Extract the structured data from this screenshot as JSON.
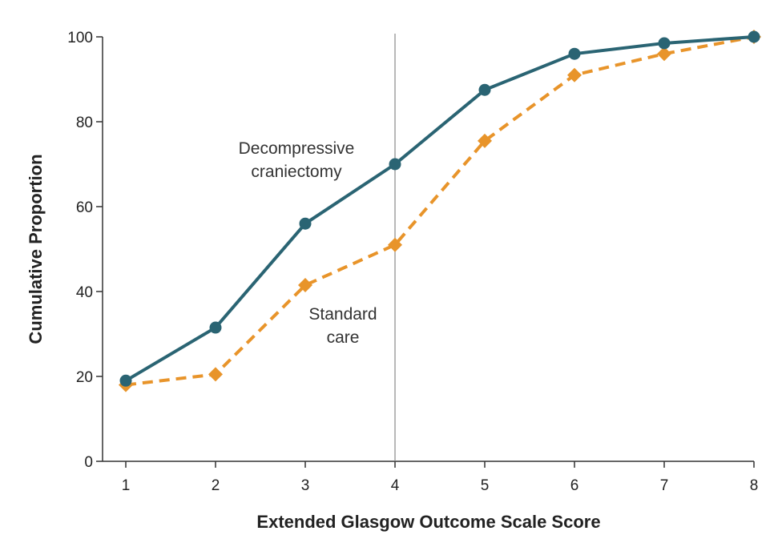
{
  "chart_data": {
    "type": "line",
    "title": "",
    "xlabel": "Extended Glasgow Outcome Scale Score",
    "ylabel": "Cumulative Proportion",
    "x": [
      1,
      2,
      3,
      4,
      5,
      6,
      7,
      8
    ],
    "xlim": [
      1,
      8
    ],
    "ylim": [
      0,
      100
    ],
    "x_ticks": [
      "1",
      "2",
      "3",
      "4",
      "5",
      "6",
      "7",
      "8"
    ],
    "y_ticks": [
      "0",
      "20",
      "40",
      "60",
      "80",
      "100"
    ],
    "reference_line_x": 4,
    "series": [
      {
        "name": "Decompressive craniectomy",
        "label_lines": [
          "Decompressive",
          "craniectomy"
        ],
        "values": [
          19,
          31.5,
          56,
          70,
          87.5,
          96,
          98.5,
          100
        ],
        "color": "#2a6473",
        "line_style": "solid",
        "marker": "circle"
      },
      {
        "name": "Standard care",
        "label_lines": [
          "Standard",
          "care"
        ],
        "values": [
          18,
          20.5,
          41.5,
          51,
          75.5,
          91,
          96,
          100
        ],
        "color": "#e8942a",
        "line_style": "dashed",
        "marker": "diamond"
      }
    ],
    "grid": false,
    "legend": "inline annotations"
  }
}
